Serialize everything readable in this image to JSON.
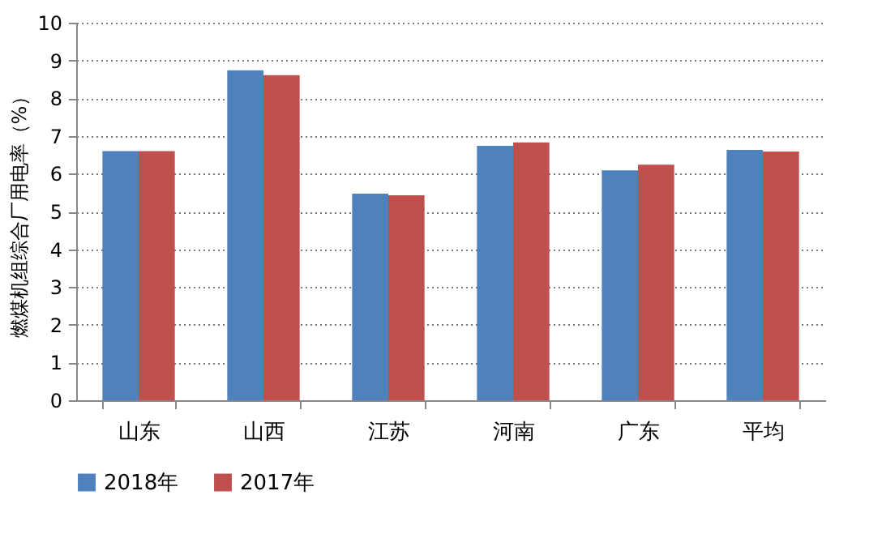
{
  "chart_data": {
    "type": "bar",
    "ylabel": "燃煤机组综合厂用电率（%）",
    "categories": [
      "山东",
      "山西",
      "江苏",
      "河南",
      "广东",
      "平均"
    ],
    "series": [
      {
        "name": "2018年",
        "color": "#4f81bd",
        "values": [
          6.6,
          8.74,
          5.47,
          6.74,
          6.09,
          6.63
        ]
      },
      {
        "name": "2017年",
        "color": "#c0504d",
        "values": [
          6.6,
          8.61,
          5.43,
          6.83,
          6.24,
          6.59
        ]
      }
    ],
    "ylim": [
      0,
      10
    ],
    "yticks": [
      0,
      1,
      2,
      3,
      4,
      5,
      6,
      7,
      8,
      9,
      10
    ],
    "grid": "y",
    "legend": "bottom"
  }
}
